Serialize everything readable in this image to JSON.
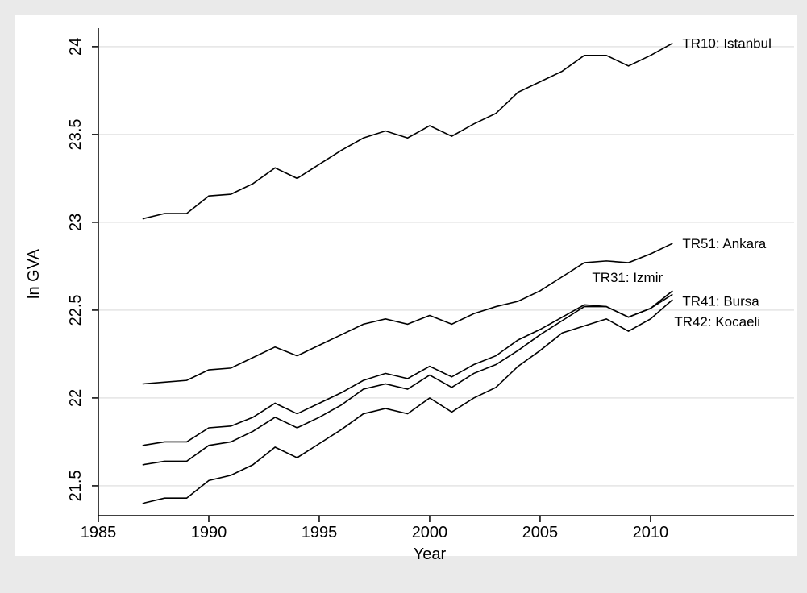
{
  "chart_data": {
    "type": "line",
    "xlabel": "Year",
    "ylabel": "ln GVA",
    "x": [
      1987,
      1988,
      1989,
      1990,
      1991,
      1992,
      1993,
      1994,
      1995,
      1996,
      1997,
      1998,
      1999,
      2000,
      2001,
      2002,
      2003,
      2004,
      2005,
      2006,
      2007,
      2008,
      2009,
      2010,
      2011
    ],
    "series": [
      {
        "name": "TR10: Istanbul",
        "color": "#000000",
        "values": [
          23.02,
          23.05,
          23.05,
          23.15,
          23.16,
          23.22,
          23.31,
          23.25,
          23.33,
          23.41,
          23.48,
          23.52,
          23.48,
          23.55,
          23.49,
          23.56,
          23.62,
          23.74,
          23.8,
          23.86,
          23.95,
          23.95,
          23.89,
          23.95,
          24.02
        ]
      },
      {
        "name": "TR51: Ankara",
        "color": "#000000",
        "values": [
          22.08,
          22.09,
          22.1,
          22.16,
          22.17,
          22.23,
          22.29,
          22.24,
          22.3,
          22.36,
          22.42,
          22.45,
          22.42,
          22.47,
          22.42,
          22.48,
          22.52,
          22.55,
          22.61,
          22.69,
          22.77,
          22.78,
          22.77,
          22.82,
          22.88
        ]
      },
      {
        "name": "TR31: Izmir",
        "color": "#000000",
        "values": [
          21.73,
          21.75,
          21.75,
          21.83,
          21.84,
          21.89,
          21.97,
          21.91,
          21.97,
          22.03,
          22.1,
          22.14,
          22.11,
          22.18,
          22.12,
          22.19,
          22.24,
          22.33,
          22.39,
          22.46,
          22.53,
          22.52,
          22.46,
          22.51,
          22.61
        ]
      },
      {
        "name": "TR41: Bursa",
        "color": "#000000",
        "values": [
          21.62,
          21.64,
          21.64,
          21.73,
          21.75,
          21.81,
          21.89,
          21.83,
          21.89,
          21.96,
          22.05,
          22.08,
          22.05,
          22.13,
          22.06,
          22.14,
          22.19,
          22.27,
          22.36,
          22.44,
          22.52,
          22.52,
          22.46,
          22.51,
          22.59
        ]
      },
      {
        "name": "TR42: Kocaeli",
        "color": "#000000",
        "values": [
          21.4,
          21.43,
          21.43,
          21.53,
          21.56,
          21.62,
          21.72,
          21.66,
          21.74,
          21.82,
          21.91,
          21.94,
          21.91,
          22.0,
          21.92,
          22.0,
          22.06,
          22.18,
          22.27,
          22.37,
          22.41,
          22.45,
          22.38,
          22.45,
          22.56
        ]
      }
    ],
    "xlim": [
      1985,
      2016.5
    ],
    "xticks": [
      1985,
      1990,
      1995,
      2000,
      2005,
      2010
    ],
    "ylim": [
      21.33,
      24.105
    ],
    "yticks": [
      21.5,
      22,
      22.5,
      23,
      23.5,
      24
    ],
    "grid": true
  }
}
